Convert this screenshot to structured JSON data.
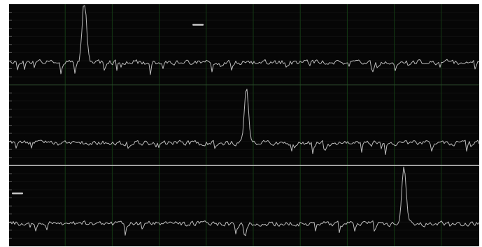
{
  "window": {
    "title": ""
  },
  "theme": {
    "background": "#060606",
    "page": "#ffffff",
    "grid_major": "#143a14",
    "grid_minor": "#101010",
    "trace": "#bdbdbd",
    "divider_primary": "#b9b9b9",
    "divider_secondary": "#2d4a2d",
    "marker": "#c9c9c9"
  },
  "display": {
    "channel_count": 3,
    "vertical_divisions": 10,
    "minor_rows_per_channel": 10
  },
  "channels": [
    {
      "name": "",
      "peak_position": 0.16,
      "peak_height": 0.82,
      "marker_position": 0.39,
      "marker_level": 0.67,
      "noise_seed": 17
    },
    {
      "name": "",
      "peak_position": 0.505,
      "peak_height": 0.66,
      "noise_seed": 53
    },
    {
      "name": "",
      "peak_position": 0.84,
      "peak_height": 0.7,
      "marker_position": 0.0,
      "marker_level": 0.58,
      "noise_seed": 91
    }
  ]
}
